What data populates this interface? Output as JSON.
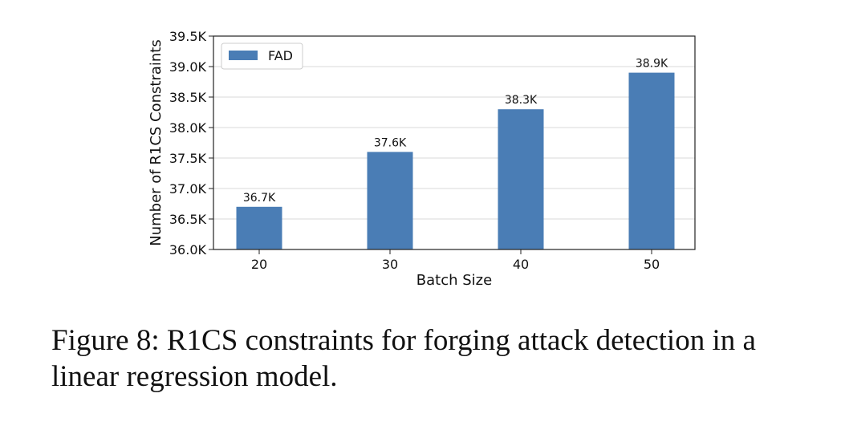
{
  "chart_data": {
    "type": "bar",
    "categories": [
      "20",
      "30",
      "40",
      "50"
    ],
    "series": [
      {
        "name": "FAD",
        "values": [
          36.7,
          37.6,
          38.3,
          38.9
        ],
        "labels": [
          "36.7K",
          "37.6K",
          "38.3K",
          "38.9K"
        ]
      }
    ],
    "xlabel": "Batch Size",
    "ylabel": "Number of R1CS Constraints",
    "ylim": [
      36.0,
      39.5
    ],
    "yticks": [
      36.0,
      36.5,
      37.0,
      37.5,
      38.0,
      38.5,
      39.0,
      39.5
    ],
    "ytick_labels": [
      "36.0K",
      "36.5K",
      "37.0K",
      "37.5K",
      "38.0K",
      "38.5K",
      "39.0K",
      "39.5K"
    ],
    "grid": "horizontal",
    "legend_position": "top-left",
    "bar_color": "#4a7db5"
  },
  "caption": "Figure 8: R1CS constraints for forging attack detection in a linear regression model."
}
